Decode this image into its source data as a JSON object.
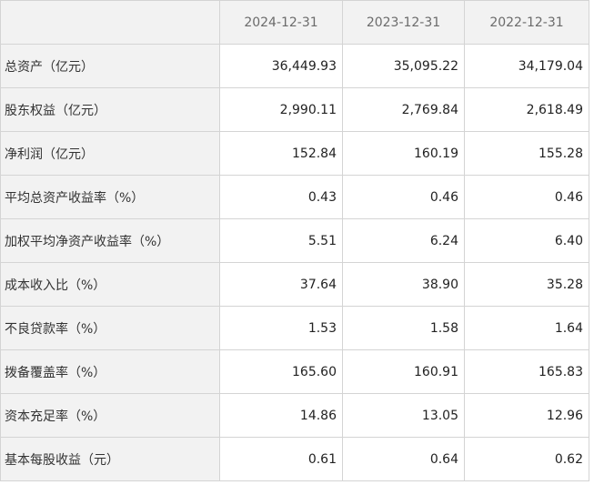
{
  "table": {
    "columns": [
      "",
      "2024-12-31",
      "2023-12-31",
      "2022-12-31"
    ],
    "rows": [
      {
        "label": "总资产（亿元）",
        "values": [
          "36,449.93",
          "35,095.22",
          "34,179.04"
        ]
      },
      {
        "label": "股东权益（亿元）",
        "values": [
          "2,990.11",
          "2,769.84",
          "2,618.49"
        ]
      },
      {
        "label": "净利润（亿元）",
        "values": [
          "152.84",
          "160.19",
          "155.28"
        ]
      },
      {
        "label": "平均总资产收益率（%）",
        "values": [
          "0.43",
          "0.46",
          "0.46"
        ]
      },
      {
        "label": "加权平均净资产收益率（%）",
        "values": [
          "5.51",
          "6.24",
          "6.40"
        ]
      },
      {
        "label": "成本收入比（%）",
        "values": [
          "37.64",
          "38.90",
          "35.28"
        ]
      },
      {
        "label": "不良贷款率（%）",
        "values": [
          "1.53",
          "1.58",
          "1.64"
        ]
      },
      {
        "label": "拨备覆盖率（%）",
        "values": [
          "165.60",
          "160.91",
          "165.83"
        ]
      },
      {
        "label": "资本充足率（%）",
        "values": [
          "14.86",
          "13.05",
          "12.96"
        ]
      },
      {
        "label": "基本每股收益（元）",
        "values": [
          "0.61",
          "0.64",
          "0.62"
        ]
      }
    ]
  }
}
